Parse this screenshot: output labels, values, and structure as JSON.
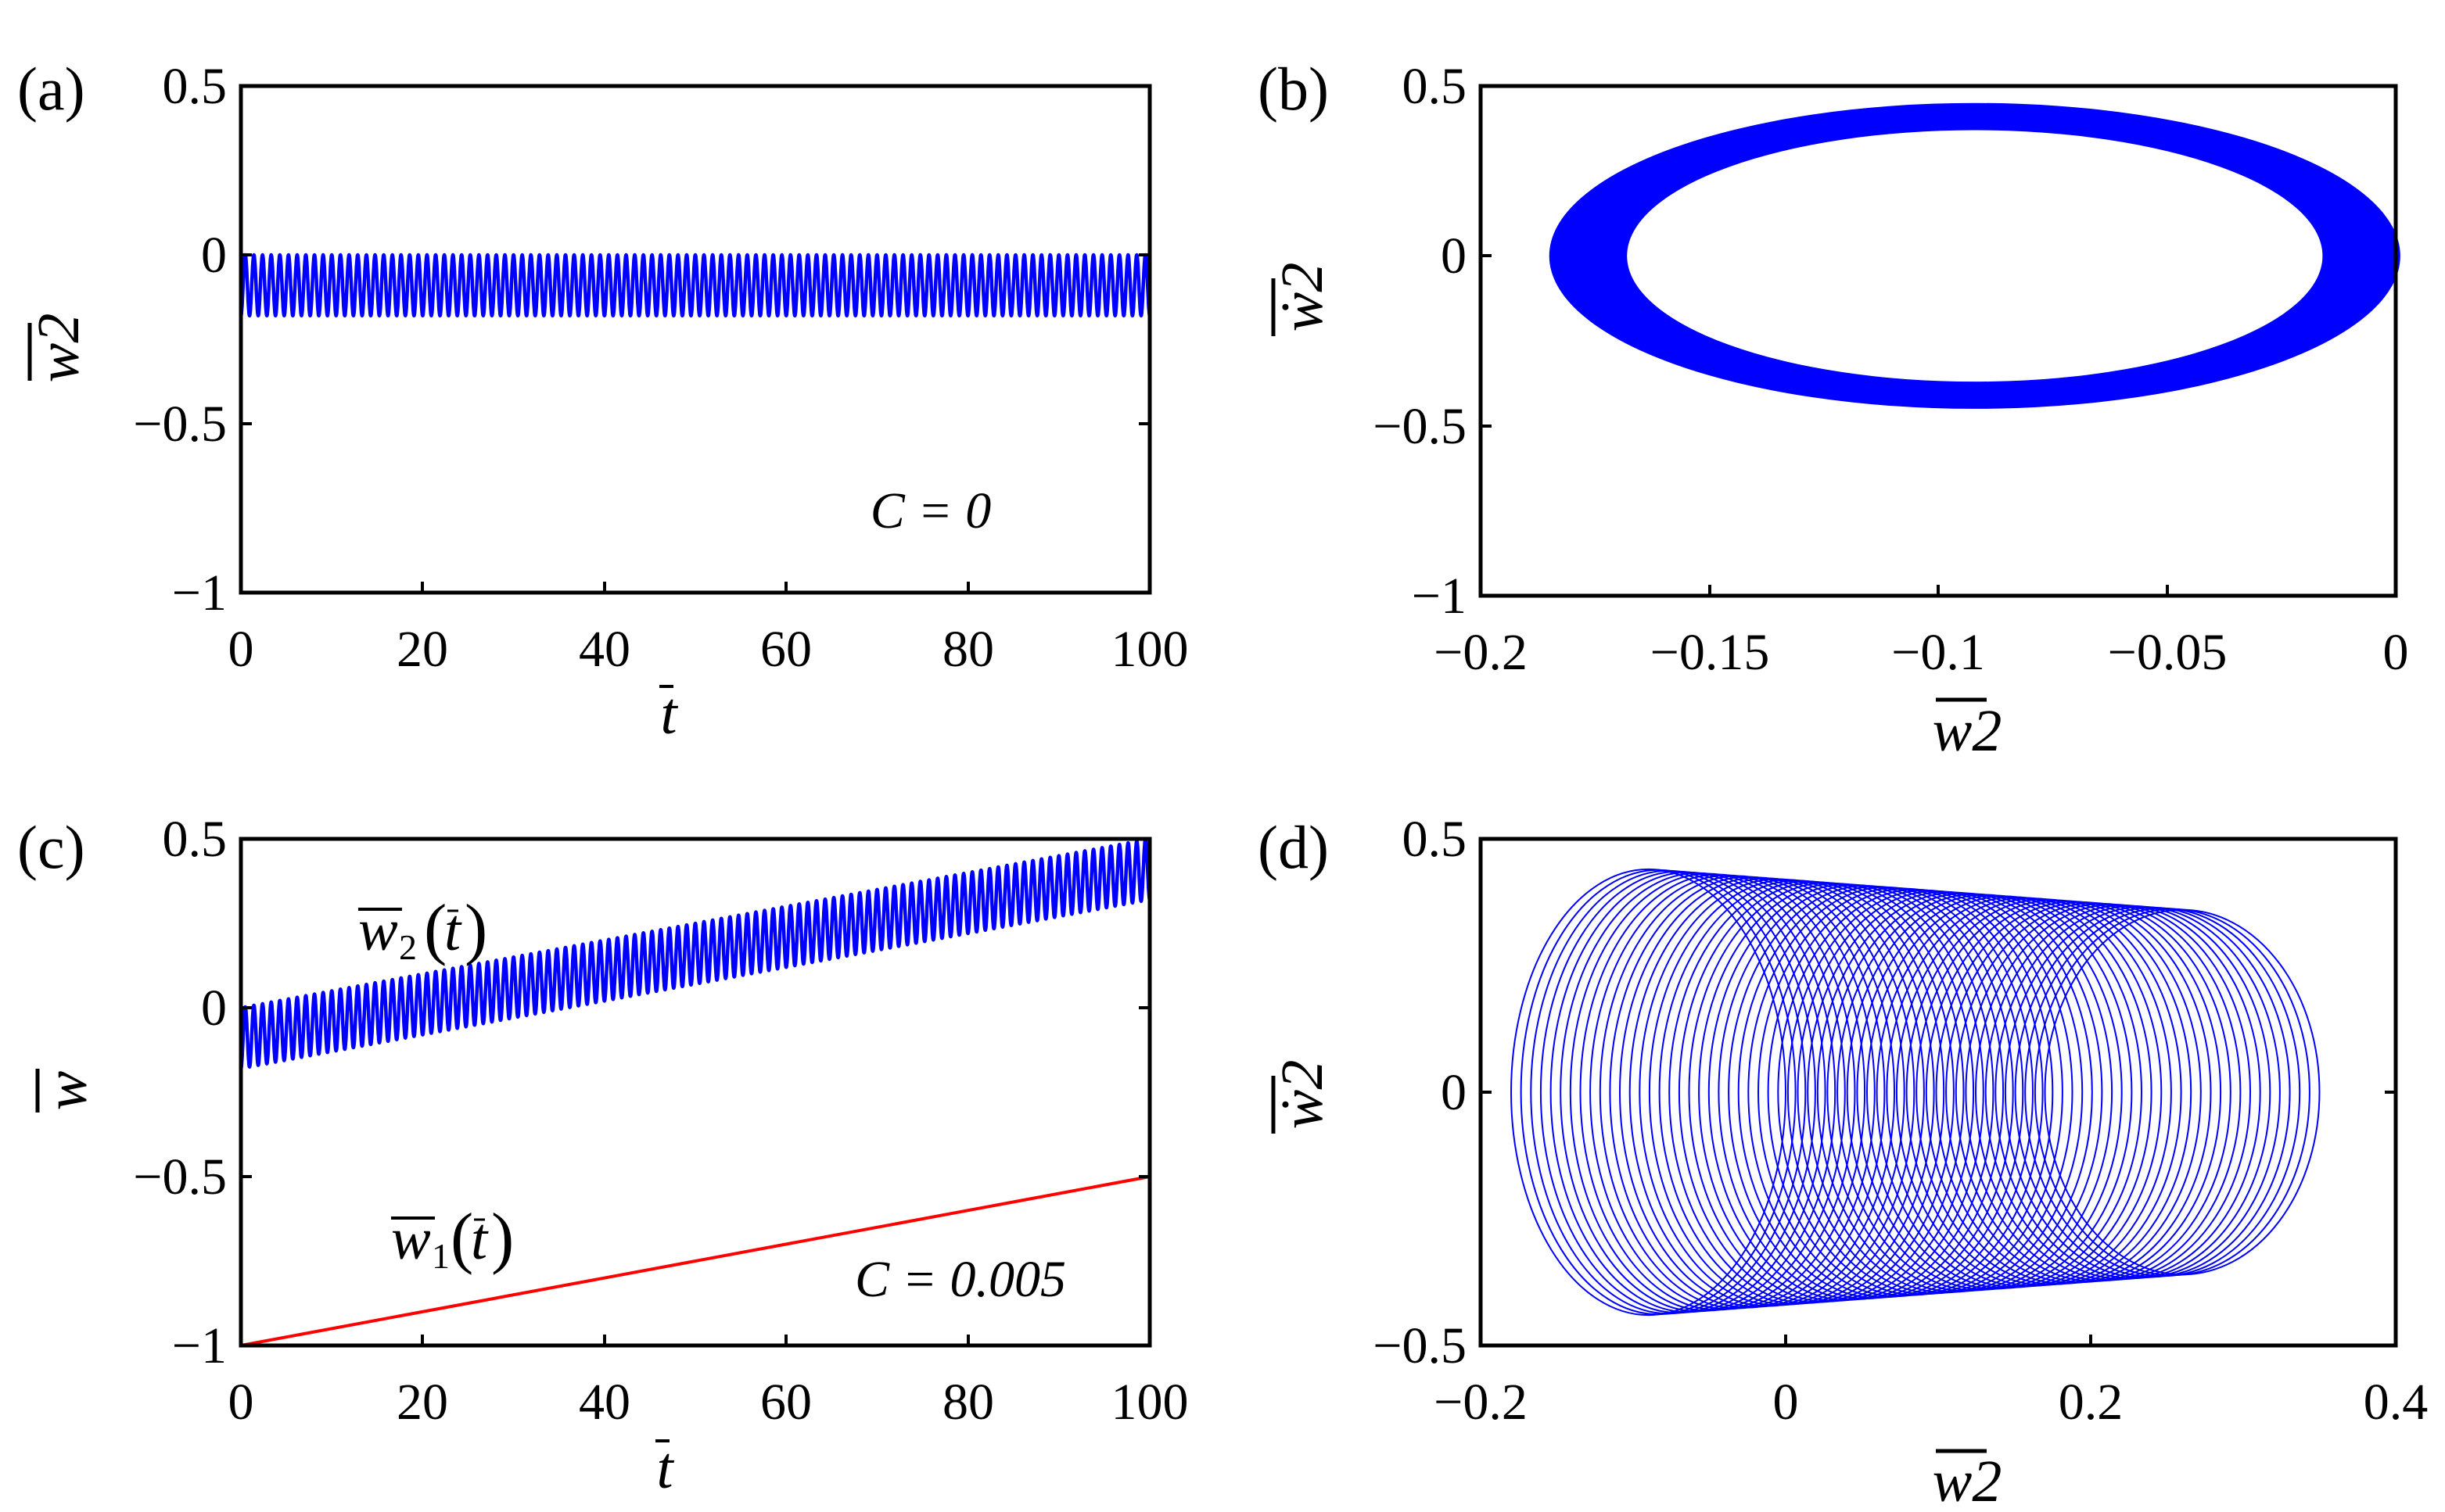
{
  "chart_data": [
    {
      "panel": "(a)",
      "type": "line",
      "title": "",
      "xlabel": "t",
      "ylabel": "w2",
      "xlim": [
        0,
        100
      ],
      "ylim": [
        -1,
        0.5
      ],
      "xticks": [
        "0",
        "20",
        "40",
        "60",
        "80",
        "100"
      ],
      "yticks": [
        "0.5",
        "0",
        "−0.5",
        "−1"
      ],
      "annotation": "C = 0",
      "series": [
        {
          "name": "w2(t)",
          "color": "#0000ff",
          "model": "oscillation",
          "center": -0.09,
          "amplitude": 0.09,
          "periods": 105,
          "drift": 0
        }
      ]
    },
    {
      "panel": "(b)",
      "type": "line",
      "title": "",
      "xlabel": "w2",
      "ylabel": "ẇ2",
      "xlim": [
        -0.2,
        0
      ],
      "ylim": [
        -1,
        0.5
      ],
      "xticks": [
        "−0.2",
        "−0.15",
        "−0.1",
        "−0.05",
        "0"
      ],
      "yticks": [
        "0.5",
        "0",
        "−0.5",
        "−1"
      ],
      "series": [
        {
          "name": "phase orbit",
          "color": "#0000ff",
          "model": "ellipse-band",
          "cx": -0.092,
          "rx_outer": 0.093,
          "ry_outer": 0.45,
          "rx_inner": 0.076,
          "ry_inner": 0.37
        }
      ]
    },
    {
      "panel": "(c)",
      "type": "line",
      "title": "",
      "xlabel": "t",
      "ylabel": "w",
      "xlim": [
        0,
        100
      ],
      "ylim": [
        -1,
        0.5
      ],
      "xticks": [
        "0",
        "20",
        "40",
        "60",
        "80",
        "100"
      ],
      "yticks": [
        "0.5",
        "0",
        "−0.5",
        "−1"
      ],
      "annotation": "C = 0.005",
      "series": [
        {
          "name": "w2(t)",
          "label_main": "w",
          "label_sub": "2",
          "label_arg": "t",
          "color": "#0000ff",
          "model": "oscillation",
          "center": -0.09,
          "amplitude": 0.09,
          "periods": 105,
          "drift": 0.005
        },
        {
          "name": "w1(t)",
          "label_main": "w",
          "label_sub": "1",
          "label_arg": "t",
          "color": "#ff0000",
          "model": "linear",
          "x": [
            0,
            100
          ],
          "y": [
            -1,
            -0.5
          ]
        }
      ]
    },
    {
      "panel": "(d)",
      "type": "line",
      "title": "",
      "xlabel": "w2",
      "ylabel": "ẇ2",
      "xlim": [
        -0.2,
        0.4
      ],
      "ylim": [
        -0.5,
        0.5
      ],
      "xticks": [
        "−0.2",
        "0",
        "0.2",
        "0.4"
      ],
      "yticks": [
        "0.5",
        "0",
        "−0.5"
      ],
      "series": [
        {
          "name": "phase orbit",
          "color": "#0000ff",
          "model": "drifting-ellipses",
          "cx_start": -0.09,
          "cx_end": 0.26,
          "rx": 0.09,
          "ry_start": 0.44,
          "ry_end": 0.36,
          "count": 55
        }
      ]
    }
  ]
}
